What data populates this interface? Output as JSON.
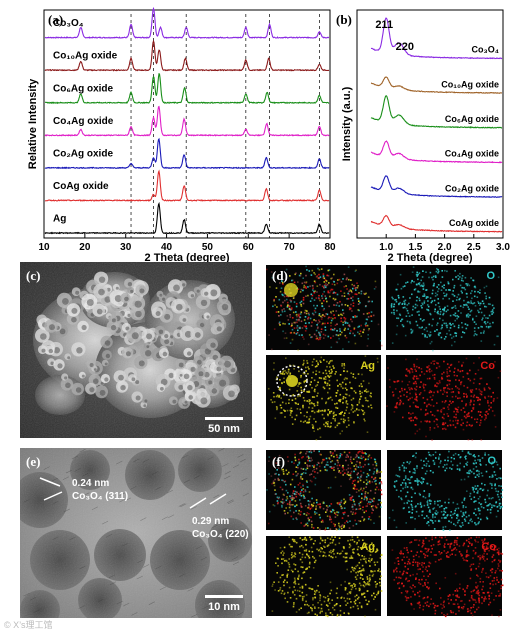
{
  "figure": {
    "watermark": "© X’s理工馆"
  },
  "chart_data": [
    {
      "type": "line",
      "panel": "(a)",
      "xlabel": "2 Theta (degree)",
      "ylabel": "Relative Intensity",
      "xlim": [
        10,
        80
      ],
      "xticks": [
        10,
        20,
        30,
        40,
        50,
        60,
        70,
        80
      ],
      "reference_lines_x": [
        31.3,
        36.8,
        44.8,
        59.4,
        65.2,
        77.4
      ],
      "series": [
        {
          "name": "Co3O4",
          "label": "Co₃O₄",
          "color": "#8a2be2",
          "peaks": [
            [
              19.0,
              0.35
            ],
            [
              31.3,
              0.45
            ],
            [
              36.8,
              1.0
            ],
            [
              38.5,
              0.35
            ],
            [
              44.8,
              0.35
            ],
            [
              59.4,
              0.35
            ],
            [
              65.2,
              0.45
            ],
            [
              77.4,
              0.2
            ]
          ]
        },
        {
          "name": "Co10Ag oxide",
          "label": "Co₁₀Ag oxide",
          "color": "#8b1a1a",
          "peaks": [
            [
              19.0,
              0.3
            ],
            [
              31.3,
              0.4
            ],
            [
              36.8,
              1.0
            ],
            [
              38.2,
              0.7
            ],
            [
              44.6,
              0.4
            ],
            [
              59.4,
              0.35
            ],
            [
              65.0,
              0.4
            ],
            [
              77.4,
              0.2
            ]
          ]
        },
        {
          "name": "Co6Ag oxide",
          "label": "Co₆Ag oxide",
          "color": "#1a8f1a",
          "peaks": [
            [
              19.0,
              0.3
            ],
            [
              31.3,
              0.35
            ],
            [
              36.8,
              0.9
            ],
            [
              38.2,
              1.0
            ],
            [
              44.4,
              0.5
            ],
            [
              59.4,
              0.3
            ],
            [
              64.6,
              0.35
            ],
            [
              77.4,
              0.25
            ]
          ]
        },
        {
          "name": "Co4Ag oxide",
          "label": "Co₄Ag oxide",
          "color": "#e020c8",
          "peaks": [
            [
              19.0,
              0.2
            ],
            [
              31.3,
              0.3
            ],
            [
              36.8,
              0.6
            ],
            [
              38.1,
              1.0
            ],
            [
              44.3,
              0.55
            ],
            [
              59.4,
              0.2
            ],
            [
              64.5,
              0.4
            ],
            [
              77.4,
              0.3
            ]
          ]
        },
        {
          "name": "Co2Ag oxide",
          "label": "Co₂Ag oxide",
          "color": "#1a1ab8",
          "peaks": [
            [
              31.3,
              0.15
            ],
            [
              36.8,
              0.35
            ],
            [
              38.1,
              1.0
            ],
            [
              44.3,
              0.45
            ],
            [
              64.4,
              0.35
            ],
            [
              77.4,
              0.3
            ]
          ]
        },
        {
          "name": "CoAg oxide",
          "label": "CoAg oxide",
          "color": "#e03030",
          "peaks": [
            [
              36.8,
              0.2
            ],
            [
              38.1,
              1.0
            ],
            [
              44.3,
              0.5
            ],
            [
              64.4,
              0.4
            ],
            [
              77.4,
              0.35
            ]
          ]
        },
        {
          "name": "Ag",
          "label": "Ag",
          "color": "#000000",
          "peaks": [
            [
              38.1,
              1.0
            ],
            [
              44.3,
              0.45
            ],
            [
              64.4,
              0.3
            ],
            [
              77.4,
              0.3
            ]
          ]
        }
      ]
    },
    {
      "type": "line",
      "panel": "(b)",
      "xlabel": "2 Theta (degree)",
      "ylabel": "Intensity (a.u.)",
      "xlim": [
        0.5,
        3.0
      ],
      "xticks": [
        1.0,
        1.5,
        2.0,
        2.5,
        3.0
      ],
      "xtick_labels": [
        "1.0",
        "1.5",
        "2.0",
        "2.5",
        "3.0"
      ],
      "peak_labels": [
        {
          "text": "211",
          "x": 1.0
        },
        {
          "text": "220",
          "x": 1.25
        }
      ],
      "series": [
        {
          "name": "Co3O4",
          "label": "Co₃O₄",
          "color": "#8a2be2",
          "peak_height": 1.0
        },
        {
          "name": "Co10Ag oxide",
          "label": "Co₁₀Ag oxide",
          "color": "#a0642a",
          "peak_height": 0.3
        },
        {
          "name": "Co6Ag oxide",
          "label": "Co₆Ag oxide",
          "color": "#1a8f1a",
          "peak_height": 0.75
        },
        {
          "name": "Co4Ag oxide",
          "label": "Co₄Ag oxide",
          "color": "#e020c8",
          "peak_height": 0.45
        },
        {
          "name": "Co2Ag oxide",
          "label": "Co₂Ag oxide",
          "color": "#1a1ab8",
          "peak_height": 0.45
        },
        {
          "name": "CoAg oxide",
          "label": "CoAg oxide",
          "color": "#e03030",
          "peak_height": 0.3
        }
      ]
    }
  ],
  "panels": {
    "c": {
      "letter": "(c)",
      "scalebar": "50 nm"
    },
    "d": {
      "letter": "(d)",
      "maps": [
        {
          "label": "",
          "color": "#9a6a6a"
        },
        {
          "label": "O",
          "color": "#30c8c8"
        },
        {
          "label": "Ag",
          "color": "#d8d020"
        },
        {
          "label": "Co",
          "color": "#e01818"
        }
      ]
    },
    "e": {
      "letter": "(e)",
      "scalebar": "10 nm",
      "annotations": [
        {
          "line1": "0.24 nm",
          "line2": "Co₃O₄ (311)"
        },
        {
          "line1": "0.29 nm",
          "line2": "Co₃O₄ (220)"
        }
      ]
    },
    "f": {
      "letter": "(f)",
      "maps": [
        {
          "label": "",
          "color": "#7a8a8a"
        },
        {
          "label": "O",
          "color": "#30c8c8"
        },
        {
          "label": "Ag",
          "color": "#d8d020"
        },
        {
          "label": "Co",
          "color": "#e01818"
        }
      ]
    }
  }
}
